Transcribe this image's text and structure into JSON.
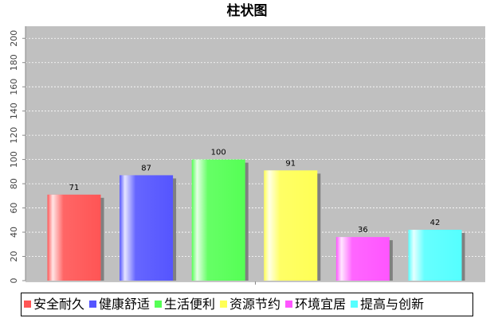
{
  "chart_data": {
    "type": "bar",
    "title": "柱状图",
    "categories": [
      null
    ],
    "series": [
      {
        "name": "安全耐久",
        "color": "#ff5555",
        "values": [
          71
        ]
      },
      {
        "name": "健康舒适",
        "color": "#5555ff",
        "values": [
          87
        ]
      },
      {
        "name": "生活便利",
        "color": "#55ff55",
        "values": [
          100
        ]
      },
      {
        "name": "资源节约",
        "color": "#ffff55",
        "values": [
          91
        ]
      },
      {
        "name": "环境宜居",
        "color": "#ff55ff",
        "values": [
          36
        ]
      },
      {
        "name": "提高与创新",
        "color": "#55ffff",
        "values": [
          42
        ]
      }
    ],
    "ylim": [
      0,
      210
    ],
    "yticks": [
      0,
      20,
      40,
      60,
      80,
      100,
      120,
      140,
      160,
      180,
      200
    ],
    "grid": true,
    "legend": "bottom"
  }
}
